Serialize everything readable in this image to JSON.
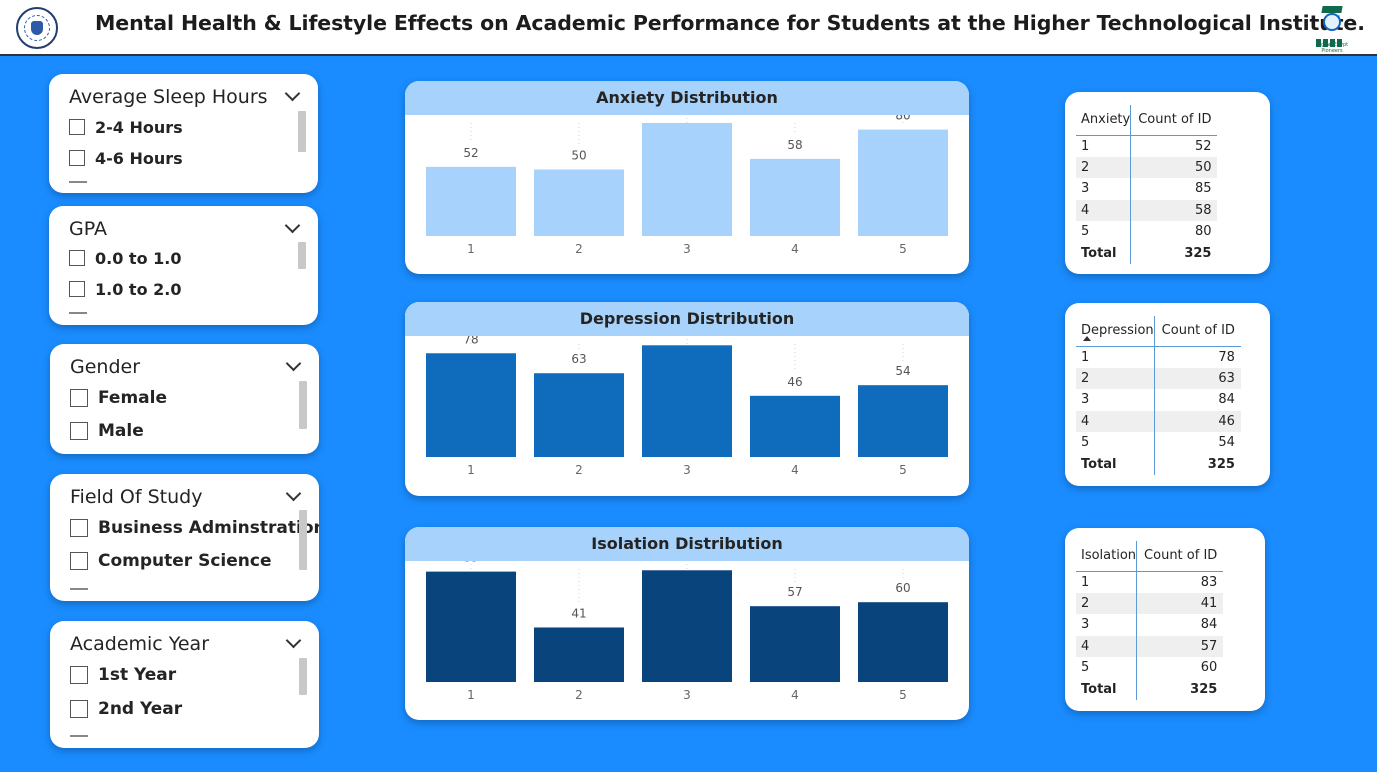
{
  "header": {
    "title": "Mental Health & Lifestyle Effects on Academic Performance for Students at the Higher Technological Institute."
  },
  "slicers": [
    {
      "title": "Average Sleep Hours",
      "options": [
        "2-4 Hours",
        "4-6 Hours"
      ]
    },
    {
      "title": "GPA",
      "options": [
        "0.0 to 1.0",
        "1.0 to 2.0"
      ]
    },
    {
      "title": "Gender",
      "options": [
        "Female",
        "Male"
      ]
    },
    {
      "title": "Field Of Study",
      "options": [
        "Business Adminstration",
        "Computer Science"
      ]
    },
    {
      "title": "Academic Year",
      "options": [
        "1st Year",
        "2nd Year"
      ]
    }
  ],
  "chart_data": [
    {
      "type": "bar",
      "title": "Anxiety Distribution",
      "categories": [
        "1",
        "2",
        "3",
        "4",
        "5"
      ],
      "values": [
        52,
        50,
        85,
        58,
        80
      ],
      "ylim": [
        0,
        100
      ],
      "color": "#A6D2FB",
      "grid": false
    },
    {
      "type": "bar",
      "title": "Depression Distribution",
      "categories": [
        "1",
        "2",
        "3",
        "4",
        "5"
      ],
      "values": [
        78,
        63,
        84,
        46,
        54
      ],
      "ylim": [
        0,
        100
      ],
      "color": "#0F6CBD",
      "grid": false
    },
    {
      "type": "bar",
      "title": "Isolation Distribution",
      "categories": [
        "1",
        "2",
        "3",
        "4",
        "5"
      ],
      "values": [
        83,
        41,
        84,
        57,
        60
      ],
      "ylim": [
        0,
        100
      ],
      "color": "#0A447D",
      "grid": false
    }
  ],
  "tables": [
    {
      "col1": "Anxiety",
      "col2": "Count of ID",
      "rows": [
        [
          "1",
          "52"
        ],
        [
          "2",
          "50"
        ],
        [
          "3",
          "85"
        ],
        [
          "4",
          "58"
        ],
        [
          "5",
          "80"
        ]
      ],
      "total_label": "Total",
      "total": "325"
    },
    {
      "col1": "Depression",
      "col2": "Count of ID",
      "rows": [
        [
          "1",
          "78"
        ],
        [
          "2",
          "63"
        ],
        [
          "3",
          "84"
        ],
        [
          "4",
          "46"
        ],
        [
          "5",
          "54"
        ]
      ],
      "total_label": "Total",
      "total": "325"
    },
    {
      "col1": "Isolation",
      "col2": "Count of ID",
      "rows": [
        [
          "1",
          "83"
        ],
        [
          "2",
          "41"
        ],
        [
          "3",
          "84"
        ],
        [
          "4",
          "57"
        ],
        [
          "5",
          "60"
        ]
      ],
      "total_label": "Total",
      "total": "325"
    }
  ],
  "colors": {
    "background": "#1A8CFF",
    "chart_header": "#A6D2FB"
  }
}
